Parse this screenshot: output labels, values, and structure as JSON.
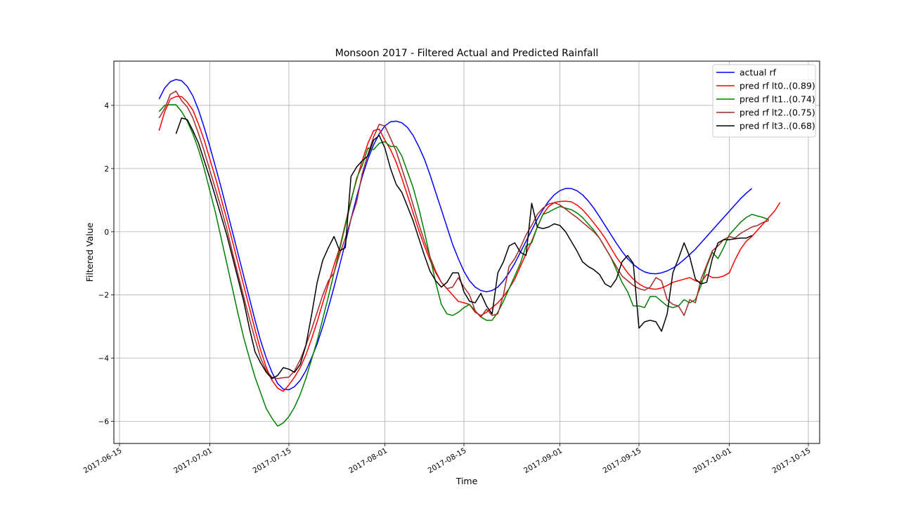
{
  "chart_data": {
    "type": "line",
    "title": "Monsoon 2017 - Filtered Actual and Predicted Rainfall",
    "xlabel": "Time",
    "ylabel": "Filtered Value",
    "x_start": "2017-06-22",
    "x_step_days": 1,
    "xlim": [
      "2017-06-14",
      "2017-10-17"
    ],
    "ylim": [
      -6.7,
      5.4
    ],
    "x_ticks": [
      "2017-06-15",
      "2017-07-01",
      "2017-07-15",
      "2017-08-01",
      "2017-08-15",
      "2017-09-01",
      "2017-09-15",
      "2017-10-01",
      "2017-10-15"
    ],
    "y_ticks": [
      -6,
      -4,
      -2,
      0,
      2,
      4
    ],
    "grid": true,
    "legend_position": "top-right",
    "series": [
      {
        "name": "actual rf",
        "color": "#0000ff",
        "start": "2017-06-22",
        "values": [
          4.2,
          4.55,
          4.75,
          4.82,
          4.78,
          4.6,
          4.3,
          3.85,
          3.3,
          2.7,
          2.05,
          1.4,
          0.7,
          0.0,
          -0.7,
          -1.4,
          -2.1,
          -2.8,
          -3.45,
          -4.0,
          -4.45,
          -4.8,
          -4.98,
          -5.0,
          -4.9,
          -4.7,
          -4.4,
          -4.0,
          -3.55,
          -3.0,
          -2.4,
          -1.75,
          -1.05,
          -0.35,
          0.4,
          1.1,
          1.75,
          2.3,
          2.75,
          3.1,
          3.35,
          3.48,
          3.5,
          3.45,
          3.3,
          3.05,
          2.7,
          2.3,
          1.8,
          1.25,
          0.7,
          0.15,
          -0.4,
          -0.85,
          -1.25,
          -1.55,
          -1.75,
          -1.86,
          -1.9,
          -1.86,
          -1.75,
          -1.55,
          -1.3,
          -1.0,
          -0.65,
          -0.3,
          0.05,
          0.4,
          0.7,
          0.97,
          1.17,
          1.3,
          1.37,
          1.37,
          1.3,
          1.17,
          0.98,
          0.75,
          0.48,
          0.2,
          -0.08,
          -0.36,
          -0.62,
          -0.85,
          -1.03,
          -1.17,
          -1.27,
          -1.32,
          -1.33,
          -1.3,
          -1.24,
          -1.15,
          -1.03,
          -0.88,
          -0.72,
          -0.55,
          -0.35,
          -0.15,
          0.05,
          0.25,
          0.45,
          0.65,
          0.85,
          1.05,
          1.22,
          1.37
        ]
      },
      {
        "name": "pred rf lt0..(0.89)",
        "color": "#ff0000",
        "start": "2017-06-22",
        "values": [
          3.2,
          3.8,
          4.2,
          4.28,
          4.28,
          4.1,
          3.85,
          3.4,
          2.9,
          2.3,
          1.7,
          1.05,
          0.4,
          -0.3,
          -1.0,
          -1.7,
          -2.4,
          -3.1,
          -3.75,
          -4.3,
          -4.7,
          -4.95,
          -5.05,
          -4.85,
          -4.6,
          -4.3,
          -3.9,
          -3.4,
          -2.85,
          -2.25,
          -1.65,
          -1.05,
          -0.5,
          0.25,
          1.0,
          1.65,
          2.25,
          2.8,
          3.2,
          3.25,
          2.9,
          2.6,
          2.2,
          1.7,
          1.15,
          0.6,
          0.05,
          -0.45,
          -0.9,
          -1.3,
          -1.6,
          -1.8,
          -2.0,
          -2.2,
          -2.25,
          -2.3,
          -2.55,
          -2.65,
          -2.55,
          -2.4,
          -2.25,
          -2.05,
          -1.8,
          -1.5,
          -1.1,
          -0.7,
          -0.3,
          0.15,
          0.55,
          0.8,
          0.92,
          0.96,
          0.97,
          0.95,
          0.85,
          0.7,
          0.5,
          0.28,
          0.05,
          -0.2,
          -0.5,
          -0.8,
          -1.05,
          -1.3,
          -1.5,
          -1.65,
          -1.75,
          -1.8,
          -1.82,
          -1.78,
          -1.7,
          -1.6,
          -1.55,
          -1.5,
          -1.45,
          -1.55,
          -1.6,
          -1.35,
          -1.45,
          -1.45,
          -1.4,
          -1.3,
          -0.9,
          -0.55,
          -0.3,
          -0.15,
          0.05,
          0.25,
          0.45,
          0.65,
          0.93
        ]
      },
      {
        "name": "pred rf lt1..(0.74)",
        "color": "#008000",
        "start": "2017-06-22",
        "values": [
          3.8,
          4.0,
          4.02,
          4.02,
          3.8,
          3.5,
          3.1,
          2.6,
          2.0,
          1.3,
          0.6,
          -0.2,
          -1.0,
          -1.8,
          -2.6,
          -3.35,
          -4.0,
          -4.6,
          -5.1,
          -5.6,
          -5.9,
          -6.15,
          -6.05,
          -5.85,
          -5.55,
          -5.15,
          -4.65,
          -4.05,
          -3.45,
          -2.75,
          -2.05,
          -1.3,
          -0.55,
          0.2,
          0.95,
          1.7,
          2.1,
          2.65,
          2.6,
          2.8,
          2.85,
          2.7,
          2.7,
          2.4,
          1.9,
          1.4,
          0.75,
          0.0,
          -0.8,
          -1.6,
          -2.3,
          -2.6,
          -2.65,
          -2.55,
          -2.4,
          -2.3,
          -2.5,
          -2.7,
          -2.8,
          -2.8,
          -2.55,
          -2.2,
          -1.8,
          -1.4,
          -1.0,
          -0.45,
          -0.35,
          0.15,
          0.55,
          0.62,
          0.72,
          0.8,
          0.75,
          0.7,
          0.6,
          0.45,
          0.25,
          0.05,
          -0.2,
          -0.5,
          -0.8,
          -1.2,
          -1.6,
          -1.9,
          -2.35,
          -2.35,
          -2.4,
          -2.05,
          -2.05,
          -2.2,
          -2.35,
          -2.4,
          -2.35,
          -2.15,
          -2.25,
          -2.15,
          -1.7,
          -1.1,
          -0.65,
          -0.85,
          -0.5,
          -0.1,
          0.1,
          0.3,
          0.45,
          0.55,
          0.5,
          0.45,
          0.38
        ]
      },
      {
        "name": "pred rf lt2..(0.75)",
        "color": "#a52a2a",
        "start": "2017-06-22",
        "values": [
          3.6,
          3.9,
          4.35,
          4.45,
          4.15,
          3.95,
          3.6,
          3.1,
          2.55,
          1.95,
          1.35,
          0.75,
          0.1,
          -0.65,
          -1.35,
          -2.05,
          -2.75,
          -3.4,
          -4.0,
          -4.4,
          -4.6,
          -4.65,
          -4.62,
          -4.6,
          -4.4,
          -4.05,
          -3.6,
          -3.1,
          -2.55,
          -2.0,
          -1.55,
          -1.3,
          -0.7,
          -0.2,
          0.4,
          0.95,
          1.85,
          2.45,
          3.0,
          3.4,
          3.35,
          2.95,
          2.55,
          2.0,
          1.45,
          0.85,
          0.25,
          -0.3,
          -0.8,
          -1.25,
          -1.6,
          -1.8,
          -1.75,
          -1.45,
          -1.75,
          -2.0,
          -2.5,
          -2.7,
          -2.45,
          -2.65,
          -2.6,
          -2.0,
          -1.1,
          -0.85,
          -0.5,
          -0.1,
          0.2,
          0.55,
          0.75,
          0.88,
          0.92,
          0.85,
          0.72,
          0.58,
          0.45,
          0.3,
          0.15,
          0.0,
          -0.2,
          -0.5,
          -0.8,
          -1.1,
          -1.4,
          -1.55,
          -1.7,
          -1.8,
          -1.85,
          -1.75,
          -1.45,
          -1.55,
          -2.15,
          -2.3,
          -2.35,
          -2.65,
          -2.15,
          -2.25,
          -1.5,
          -1.05,
          -0.6,
          -0.45,
          -0.25,
          -0.15,
          -0.2,
          -0.05,
          0.05,
          0.15,
          0.2,
          0.3,
          0.35
        ]
      },
      {
        "name": "pred rf lt3..(0.68)",
        "color": "#000000",
        "start": "2017-06-25",
        "values": [
          3.1,
          3.6,
          3.55,
          3.2,
          2.8,
          2.25,
          1.7,
          1.1,
          0.5,
          -0.1,
          -0.8,
          -1.5,
          -2.2,
          -3.05,
          -3.8,
          -4.15,
          -4.45,
          -4.65,
          -4.55,
          -4.3,
          -4.35,
          -4.45,
          -4.2,
          -3.6,
          -2.65,
          -1.6,
          -0.9,
          -0.5,
          -0.15,
          -0.6,
          -0.5,
          1.75,
          2.05,
          2.25,
          2.4,
          2.9,
          3.05,
          2.65,
          2.0,
          1.5,
          1.25,
          0.8,
          0.35,
          -0.2,
          -0.75,
          -1.25,
          -1.55,
          -1.75,
          -1.6,
          -1.3,
          -1.3,
          -1.9,
          -2.2,
          -2.25,
          -1.95,
          -2.35,
          -2.6,
          -1.3,
          -0.95,
          -0.45,
          -0.35,
          -0.65,
          -0.75,
          0.9,
          0.15,
          0.1,
          0.15,
          0.25,
          0.2,
          0.0,
          -0.3,
          -0.6,
          -0.95,
          -1.1,
          -1.2,
          -1.35,
          -1.65,
          -1.75,
          -1.5,
          -0.95,
          -0.75,
          -1.0,
          -3.05,
          -2.85,
          -2.8,
          -2.85,
          -3.15,
          -2.6,
          -1.3,
          -0.85,
          -0.35,
          -0.8,
          -1.5,
          -1.65,
          -1.6,
          -0.85,
          -0.35,
          -0.25,
          -0.25,
          -0.22,
          -0.2,
          -0.2,
          -0.12
        ]
      }
    ]
  }
}
